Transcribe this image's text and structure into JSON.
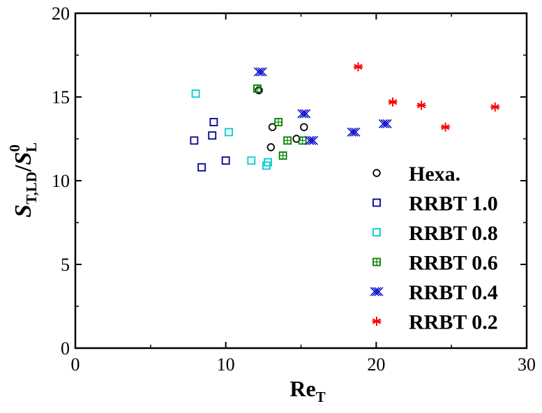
{
  "chart_data": {
    "type": "scatter",
    "title": "",
    "xlabel": {
      "main": "Re",
      "sub": "T"
    },
    "ylabel": {
      "s1": "S",
      "sub1": "T,LD",
      "slash": "/",
      "s2": "S",
      "sup2": "0",
      "sub2": "L"
    },
    "xlim": [
      0,
      30
    ],
    "ylim": [
      0,
      20
    ],
    "xticks": [
      0,
      10,
      20,
      30
    ],
    "yticks": [
      0,
      5,
      10,
      15,
      20
    ],
    "x_tick_labels": [
      "0",
      "10",
      "20",
      "30"
    ],
    "y_tick_labels": [
      "0",
      "5",
      "10",
      "15",
      "20"
    ],
    "grid": false,
    "legend_position": "right",
    "series": [
      {
        "name": "Hexa.",
        "marker": "circle",
        "color": "#000000",
        "points": [
          [
            12.2,
            15.4
          ],
          [
            13.1,
            13.2
          ],
          [
            13.0,
            12.0
          ],
          [
            14.7,
            12.5
          ],
          [
            15.2,
            13.2
          ]
        ]
      },
      {
        "name": "RRBT 1.0",
        "marker": "square",
        "color": "#00008b",
        "points": [
          [
            7.9,
            12.4
          ],
          [
            8.4,
            10.8
          ],
          [
            9.1,
            12.7
          ],
          [
            9.2,
            13.5
          ],
          [
            10.0,
            11.2
          ]
        ]
      },
      {
        "name": "RRBT 0.8",
        "marker": "square",
        "color": "#00cccc",
        "points": [
          [
            8.0,
            15.2
          ],
          [
            10.2,
            12.9
          ],
          [
            11.7,
            11.2
          ],
          [
            12.7,
            10.9
          ],
          [
            12.8,
            11.1
          ]
        ]
      },
      {
        "name": "RRBT 0.6",
        "marker": "square-hatched",
        "color": "#008000",
        "points": [
          [
            12.1,
            15.5
          ],
          [
            13.5,
            13.5
          ],
          [
            13.8,
            11.5
          ],
          [
            14.1,
            12.4
          ],
          [
            15.1,
            12.4
          ]
        ]
      },
      {
        "name": "RRBT 0.4",
        "marker": "x-hatched",
        "color": "#0000cd",
        "points": [
          [
            12.3,
            16.5
          ],
          [
            15.2,
            14.0
          ],
          [
            15.7,
            12.4
          ],
          [
            18.5,
            12.9
          ],
          [
            20.6,
            13.4
          ]
        ]
      },
      {
        "name": "RRBT 0.2",
        "marker": "asterisk",
        "color": "#ff0000",
        "points": [
          [
            18.8,
            16.8
          ],
          [
            21.1,
            14.7
          ],
          [
            23.0,
            14.5
          ],
          [
            24.6,
            13.2
          ],
          [
            27.9,
            14.4
          ]
        ]
      }
    ]
  }
}
